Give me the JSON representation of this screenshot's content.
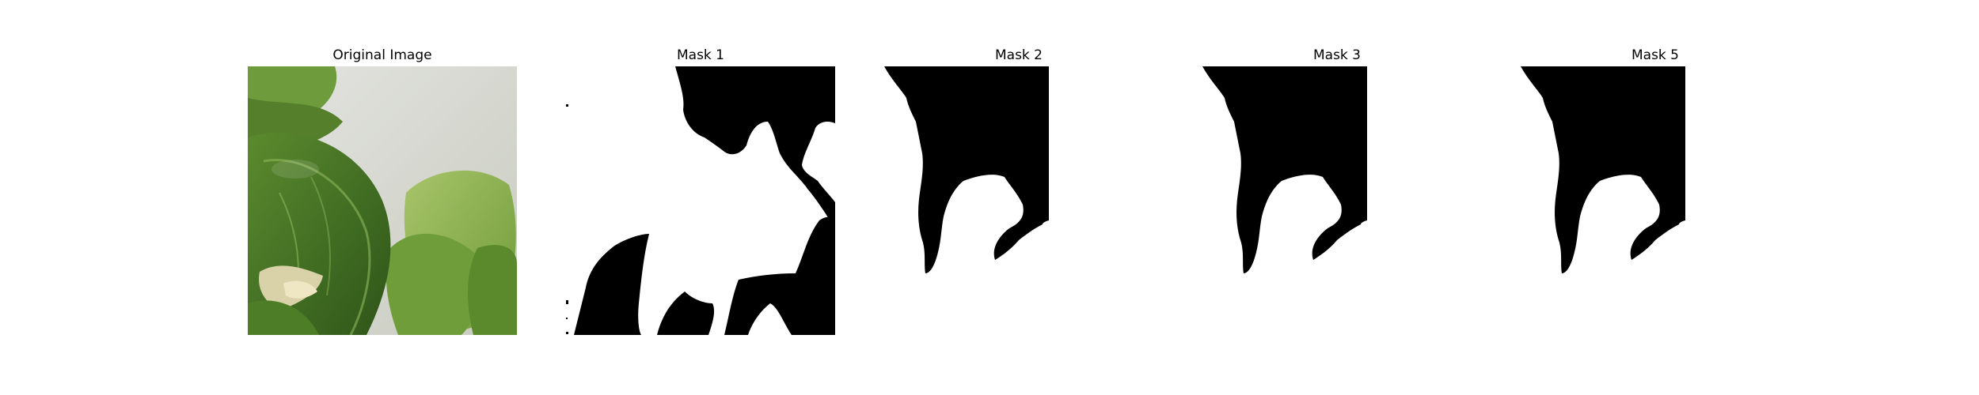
{
  "figure": {
    "panels": [
      {
        "title": "Original Image",
        "kind": "photo",
        "subject": "green leafy plant close-up"
      },
      {
        "title": "Mask 1",
        "kind": "binary-mask"
      },
      {
        "title": "Mask 2",
        "kind": "binary-mask"
      },
      {
        "title": "Mask 3",
        "kind": "binary-mask"
      },
      {
        "title": "Mask 5",
        "kind": "binary-mask"
      }
    ]
  },
  "colors": {
    "mask_foreground": "#000000",
    "mask_background": "#ffffff",
    "leaf_dark": "#3f6b22",
    "leaf_mid": "#6a9a3a",
    "leaf_light": "#b7cf7a",
    "backdrop": "#dcdcd8"
  }
}
